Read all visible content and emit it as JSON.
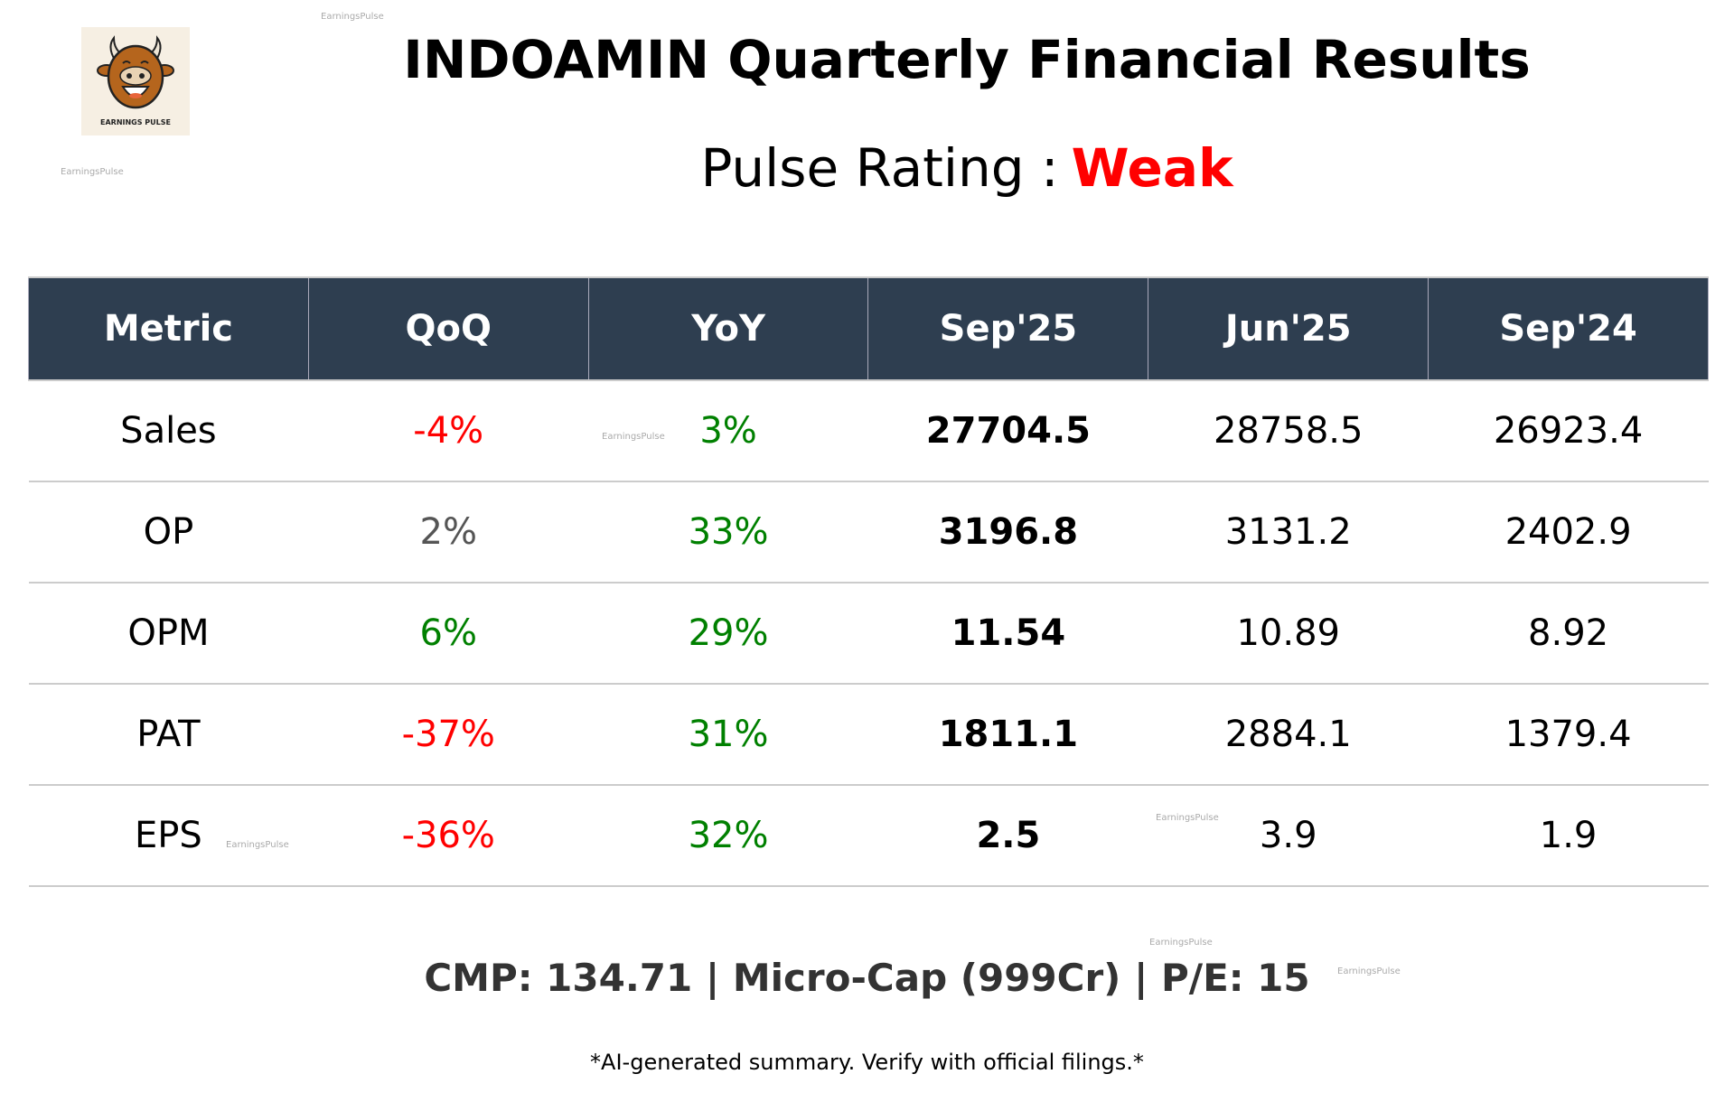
{
  "header": {
    "title": "INDOAMIN Quarterly Financial Results",
    "rating_label": "Pulse Rating :",
    "rating_value": "Weak",
    "rating_color": "#ff0000",
    "logo_text": "EARNINGS PULSE"
  },
  "watermark": "EarningsPulse",
  "table": {
    "columns": [
      "Metric",
      "QoQ",
      "YoY",
      "Sep'25",
      "Jun'25",
      "Sep'24"
    ],
    "header_bg": "#2e3e50",
    "rows": [
      {
        "metric": "Sales",
        "qoq": "-4%",
        "qoq_color": "#ff0000",
        "yoy": "3%",
        "yoy_color": "#008000",
        "sep25": "27704.5",
        "jun25": "28758.5",
        "sep24": "26923.4"
      },
      {
        "metric": "OP",
        "qoq": "2%",
        "qoq_color": "#555555",
        "yoy": "33%",
        "yoy_color": "#008000",
        "sep25": "3196.8",
        "jun25": "3131.2",
        "sep24": "2402.9"
      },
      {
        "metric": "OPM",
        "qoq": "6%",
        "qoq_color": "#008000",
        "yoy": "29%",
        "yoy_color": "#008000",
        "sep25": "11.54",
        "jun25": "10.89",
        "sep24": "8.92"
      },
      {
        "metric": "PAT",
        "qoq": "-37%",
        "qoq_color": "#ff0000",
        "yoy": "31%",
        "yoy_color": "#008000",
        "sep25": "1811.1",
        "jun25": "2884.1",
        "sep24": "1379.4"
      },
      {
        "metric": "EPS",
        "qoq": "-36%",
        "qoq_color": "#ff0000",
        "yoy": "32%",
        "yoy_color": "#008000",
        "sep25": "2.5",
        "jun25": "3.9",
        "sep24": "1.9"
      }
    ]
  },
  "footer": {
    "summary": "CMP: 134.71 | Micro-Cap (999Cr) | P/E: 15",
    "disclaimer": "*AI-generated summary. Verify with official filings.*"
  }
}
